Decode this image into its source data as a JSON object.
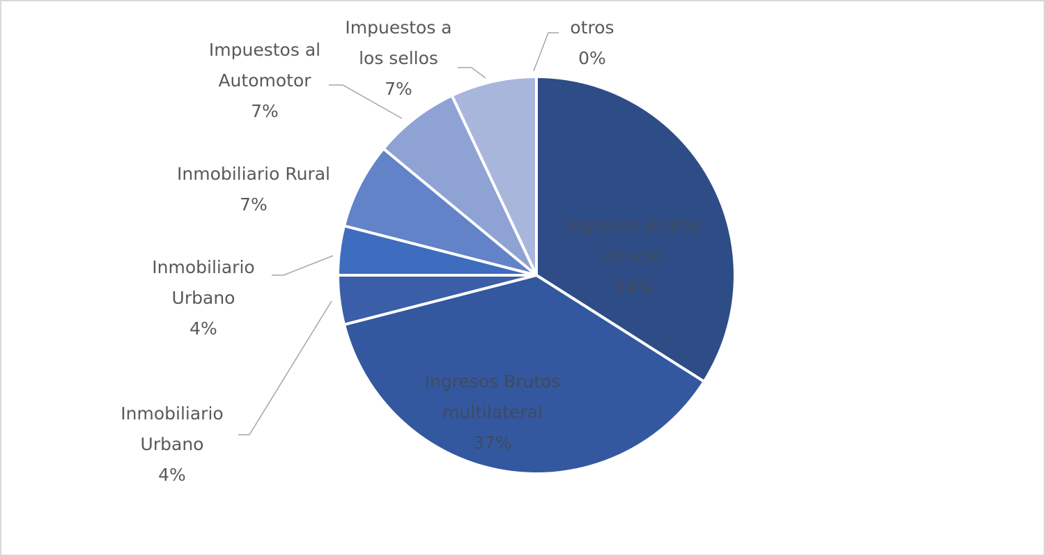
{
  "chart_data": {
    "type": "pie",
    "categories": [
      "Ingresos Brutos directo",
      "Ingresos Brutos multilateral",
      "Inmobiliario Urbano",
      "Inmobiliario Urbano",
      "Inmobiliario Rural",
      "Impuestos al Automotor",
      "Impuestos a los sellos",
      "otros"
    ],
    "values": [
      34,
      37,
      4,
      4,
      7,
      7,
      7,
      0
    ],
    "value_labels": [
      "34%",
      "37%",
      "4%",
      "4%",
      "7%",
      "7%",
      "7%",
      "0%"
    ],
    "colors": [
      "#2e4d87",
      "#3358a0",
      "#3a5fa8",
      "#3e6cbf",
      "#6283c8",
      "#8fa2d4",
      "#a9b6dc",
      "#c5cde9"
    ]
  }
}
